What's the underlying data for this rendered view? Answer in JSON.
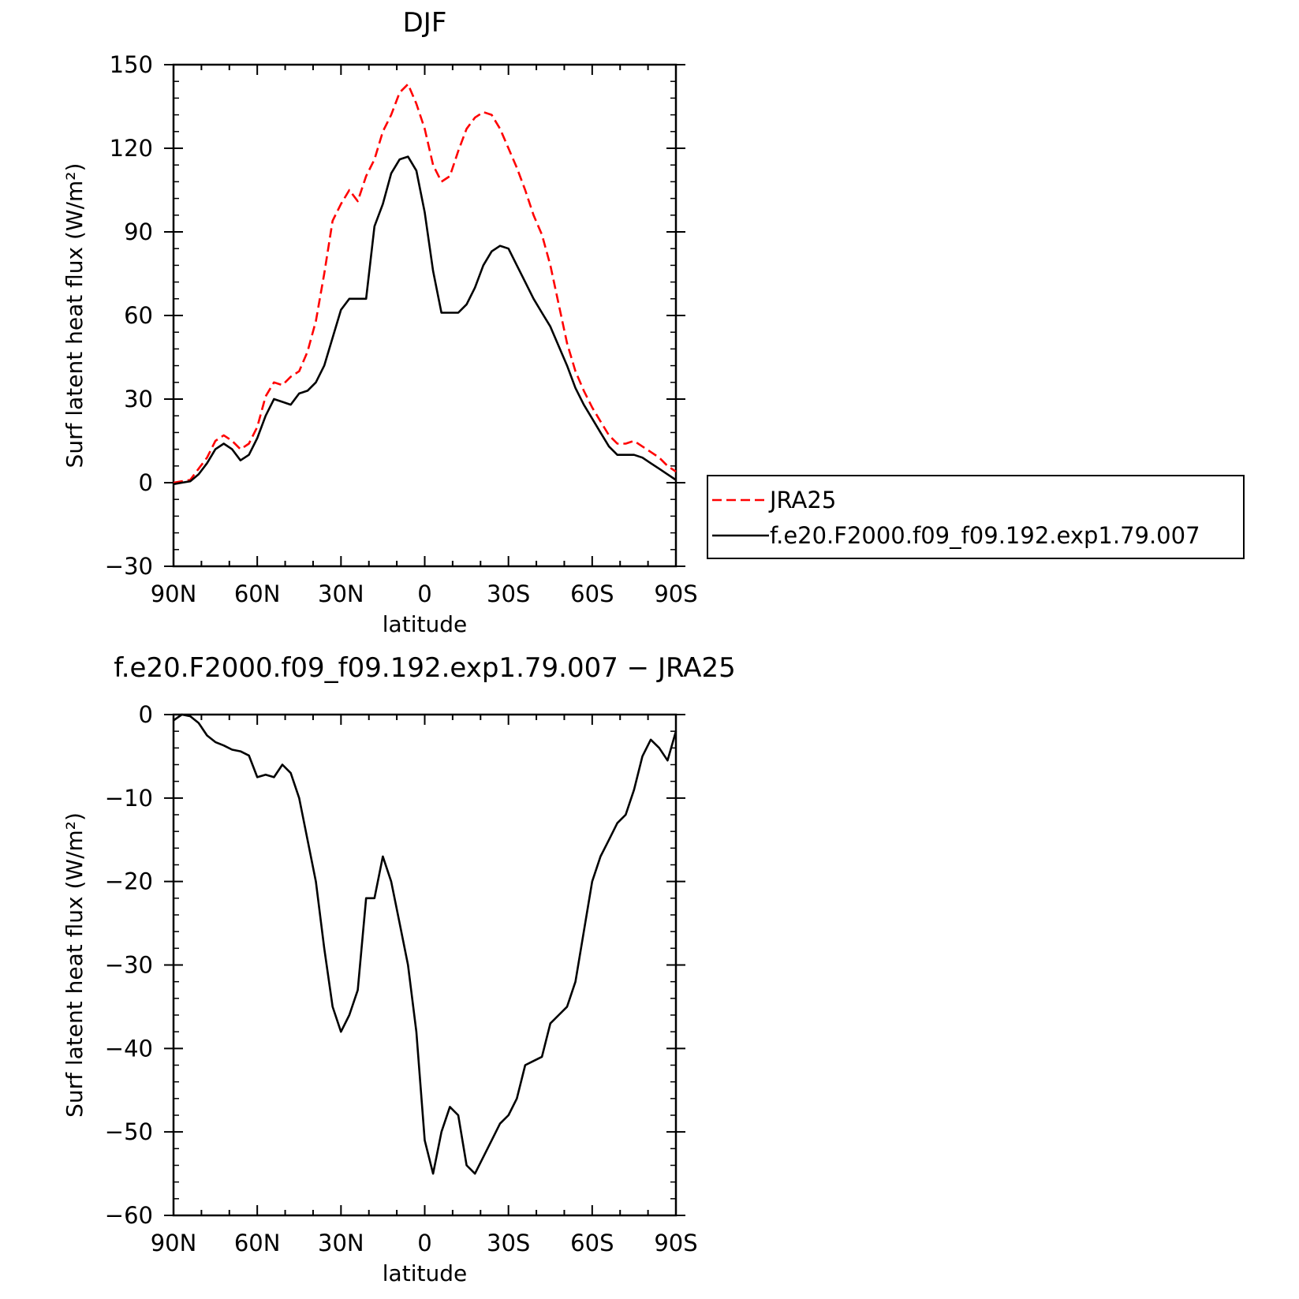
{
  "chart_data": [
    {
      "type": "line",
      "title": "DJF",
      "xlabel": "latitude",
      "ylabel": "Surf latent heat flux (W/m²)",
      "xlim": [
        90,
        -90
      ],
      "ylim": [
        -30,
        150
      ],
      "x_ticks": [
        {
          "value": 90,
          "label": "90N"
        },
        {
          "value": 60,
          "label": "60N"
        },
        {
          "value": 30,
          "label": "30N"
        },
        {
          "value": 0,
          "label": "0"
        },
        {
          "value": -30,
          "label": "30S"
        },
        {
          "value": -60,
          "label": "60S"
        },
        {
          "value": -90,
          "label": "90S"
        }
      ],
      "y_ticks": [
        {
          "value": 150,
          "label": "150"
        },
        {
          "value": 120,
          "label": "120"
        },
        {
          "value": 90,
          "label": "90"
        },
        {
          "value": 60,
          "label": "60"
        },
        {
          "value": 30,
          "label": "30"
        },
        {
          "value": 0,
          "label": "0"
        },
        {
          "value": -30,
          "label": "−30"
        }
      ],
      "legend_position": "right",
      "x": [
        90,
        87,
        84,
        81,
        78,
        75,
        72,
        69,
        66,
        63,
        60,
        57,
        54,
        51,
        48,
        45,
        42,
        39,
        36,
        33,
        30,
        27,
        24,
        21,
        18,
        15,
        12,
        9,
        6,
        3,
        0,
        -3,
        -6,
        -9,
        -12,
        -15,
        -18,
        -21,
        -24,
        -27,
        -30,
        -33,
        -36,
        -39,
        -42,
        -45,
        -48,
        -51,
        -54,
        -57,
        -60,
        -63,
        -66,
        -69,
        -72,
        -75,
        -78,
        -81,
        -84,
        -87,
        -90
      ],
      "series": [
        {
          "name": "JRA25",
          "color": "#ff0000",
          "dash": "dashed",
          "values": [
            0,
            0.5,
            1,
            5,
            9,
            15,
            17,
            15,
            12,
            14,
            20,
            31,
            36,
            35,
            38,
            40,
            47,
            58,
            75,
            94,
            100,
            105,
            101,
            110,
            116,
            126,
            132,
            140,
            143,
            136,
            127,
            114,
            108,
            110,
            119,
            127,
            131,
            133,
            132,
            127,
            120,
            113,
            105,
            96,
            89,
            78,
            64,
            50,
            40,
            33,
            27,
            22,
            17,
            14,
            14,
            15,
            13,
            11,
            9,
            6,
            4
          ]
        },
        {
          "name": "f.e20.F2000.f09_f09.192.exp1.79.007",
          "color": "#000000",
          "dash": "solid",
          "values": [
            -0.5,
            0,
            0.5,
            3,
            7,
            12,
            14,
            12,
            8,
            10,
            16,
            24,
            30,
            29,
            28,
            32,
            33,
            36,
            42,
            52,
            62,
            66,
            66,
            66,
            92,
            100,
            111,
            116,
            117,
            112,
            97,
            76,
            61,
            61,
            61,
            64,
            70,
            78,
            83,
            85,
            84,
            78,
            72,
            66,
            61,
            56,
            49,
            42,
            34,
            28,
            23,
            18,
            13,
            10,
            10,
            10,
            9,
            7,
            5,
            3,
            1
          ]
        }
      ]
    },
    {
      "type": "line",
      "title": "f.e20.F2000.f09_f09.192.exp1.79.007 − JRA25",
      "xlabel": "latitude",
      "ylabel": "Surf latent heat flux (W/m²)",
      "xlim": [
        90,
        -90
      ],
      "ylim": [
        -60,
        0
      ],
      "x_ticks": [
        {
          "value": 90,
          "label": "90N"
        },
        {
          "value": 60,
          "label": "60N"
        },
        {
          "value": 30,
          "label": "30N"
        },
        {
          "value": 0,
          "label": "0"
        },
        {
          "value": -30,
          "label": "30S"
        },
        {
          "value": -60,
          "label": "60S"
        },
        {
          "value": -90,
          "label": "90S"
        }
      ],
      "y_ticks": [
        {
          "value": 0,
          "label": "0"
        },
        {
          "value": -10,
          "label": "−10"
        },
        {
          "value": -20,
          "label": "−20"
        },
        {
          "value": -30,
          "label": "−30"
        },
        {
          "value": -40,
          "label": "−40"
        },
        {
          "value": -50,
          "label": "−50"
        },
        {
          "value": -60,
          "label": "−60"
        }
      ],
      "x": [
        90,
        87,
        84,
        81,
        78,
        75,
        72,
        69,
        66,
        63,
        60,
        57,
        54,
        51,
        48,
        45,
        42,
        39,
        36,
        33,
        30,
        27,
        24,
        21,
        18,
        15,
        12,
        9,
        6,
        3,
        0,
        -3,
        -6,
        -9,
        -12,
        -15,
        -18,
        -21,
        -24,
        -27,
        -30,
        -33,
        -36,
        -39,
        -42,
        -45,
        -48,
        -51,
        -54,
        -57,
        -60,
        -63,
        -66,
        -69,
        -72,
        -75,
        -78,
        -81,
        -84,
        -87,
        -90
      ],
      "series": [
        {
          "color": "#000000",
          "dash": "solid",
          "values": [
            -0.7,
            0,
            -0.2,
            -1,
            -2.5,
            -3.3,
            -3.7,
            -4.2,
            -4.4,
            -4.9,
            -7.5,
            -7.2,
            -7.5,
            -6,
            -7,
            -10,
            -15,
            -20,
            -28,
            -35,
            -38,
            -36,
            -33,
            -22,
            -22,
            -17,
            -20,
            -25,
            -30,
            -38,
            -51,
            -55,
            -50,
            -47,
            -48,
            -54,
            -55,
            -53,
            -51,
            -49,
            -48,
            -46,
            -42,
            -41.5,
            -41,
            -37,
            -36,
            -35,
            -32,
            -26,
            -20,
            -17,
            -15,
            -13,
            -12,
            -9,
            -5,
            -3,
            -4,
            -5.5,
            -2
          ]
        }
      ]
    }
  ]
}
